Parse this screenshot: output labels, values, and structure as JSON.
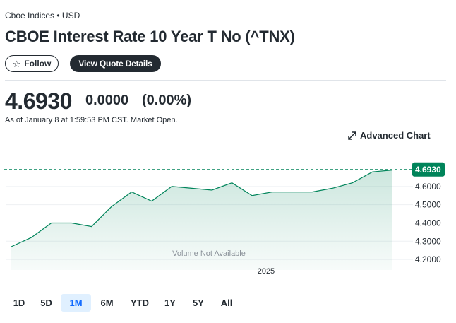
{
  "header": {
    "exchange": "Cboe Indices • USD",
    "title": "CBOE Interest Rate 10 Year T No (^TNX)",
    "follow_label": "Follow",
    "details_label": "View Quote Details"
  },
  "quote": {
    "price": "4.6930",
    "change": "0.0000",
    "change_pct": "(0.00%)",
    "as_of": "As of January 8 at 1:59:53 PM CST. Market Open."
  },
  "advanced_chart_label": "Advanced Chart",
  "icons": {
    "follow": "star-icon",
    "advanced_chart": "expand-arrows-icon"
  },
  "colors": {
    "line": "#00845a",
    "price_badge": "#00845a",
    "active_range": "#0f69ff"
  },
  "chart_data": {
    "type": "area",
    "x_label_visible": "2025",
    "y_ticks": [
      "4.2000",
      "4.3000",
      "4.4000",
      "4.5000",
      "4.6000"
    ],
    "ylim": [
      4.15,
      4.7
    ],
    "current_value_label": "4.6930",
    "volume_note": "Volume Not Available",
    "values": [
      4.27,
      4.32,
      4.4,
      4.4,
      4.38,
      4.49,
      4.57,
      4.52,
      4.6,
      4.59,
      4.58,
      4.62,
      4.55,
      4.57,
      4.57,
      4.57,
      4.59,
      4.62,
      4.68,
      4.69
    ],
    "x_index_2025": 12.7
  },
  "ranges": [
    "1D",
    "5D",
    "1M",
    "6M",
    "YTD",
    "1Y",
    "5Y",
    "All"
  ],
  "active_range": "1M"
}
